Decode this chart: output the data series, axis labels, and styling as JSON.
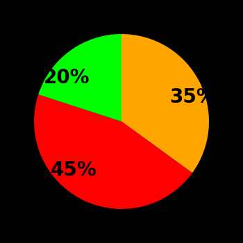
{
  "slices": [
    35,
    45,
    20
  ],
  "labels": [
    "35%",
    "45%",
    "20%"
  ],
  "colors": [
    "#FFA500",
    "#FF0000",
    "#00FF00"
  ],
  "background_color": "#000000",
  "startangle": 90,
  "figsize": [
    3.5,
    3.5
  ],
  "dpi": 100,
  "label_fontsize": 20,
  "label_fontweight": "bold",
  "labeldistance": 0.62
}
